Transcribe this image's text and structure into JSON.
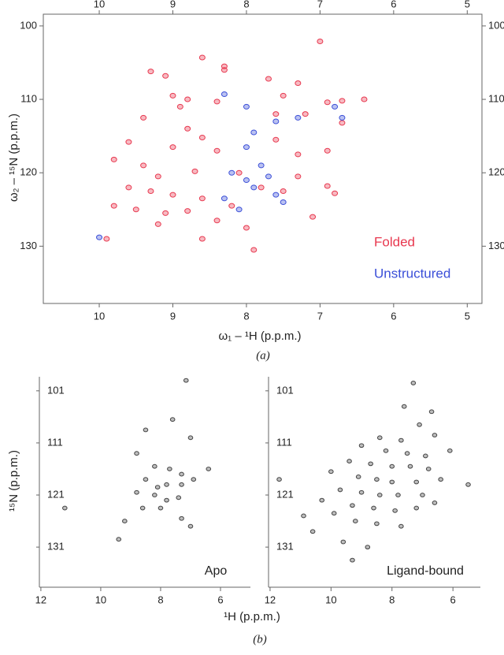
{
  "chart_data": [
    {
      "type": "scatter",
      "xlabel": "ω₁ – ¹H (p.p.m.)",
      "ylabel": "ω₂ – ¹⁵N (p.p.m.)",
      "caption": "(a)",
      "xlim": [
        10.76,
        4.8
      ],
      "ylim": [
        98.4,
        137.8
      ],
      "xticks": [
        10,
        9,
        8,
        7,
        6,
        5
      ],
      "yticks": [
        100,
        110,
        120,
        130
      ],
      "series": [
        {
          "name": "Folded",
          "color": "#e8384f",
          "x": [
            8.6,
            7.0,
            8.3,
            9.3,
            9.1,
            8.3,
            7.7,
            9.0,
            8.8,
            8.4,
            8.9,
            7.5,
            7.3,
            6.9,
            6.7,
            6.4,
            6.7,
            7.2,
            7.6,
            9.4,
            8.8,
            8.6,
            9.6,
            9.0,
            8.4,
            7.6,
            7.3,
            6.9,
            9.8,
            9.4,
            9.2,
            8.7,
            8.1,
            7.3,
            6.9,
            6.8,
            9.6,
            9.3,
            9.0,
            8.6,
            8.2,
            7.8,
            7.5,
            9.5,
            9.1,
            8.8,
            8.4,
            8.0,
            9.2,
            7.1,
            9.9,
            8.6,
            7.9,
            9.8
          ],
          "values": [
            104.3,
            102.1,
            105.5,
            106.2,
            106.8,
            106.0,
            107.2,
            109.5,
            110.0,
            110.3,
            111.0,
            109.5,
            107.8,
            110.4,
            110.2,
            110.0,
            113.2,
            112.0,
            112.0,
            112.5,
            114.0,
            115.2,
            115.8,
            116.5,
            117.0,
            115.5,
            117.5,
            117.0,
            118.2,
            119.0,
            120.5,
            119.8,
            120.0,
            120.5,
            121.8,
            122.8,
            122.0,
            122.5,
            123.0,
            123.5,
            124.5,
            122.0,
            122.5,
            125.0,
            125.5,
            125.2,
            126.5,
            127.5,
            127.0,
            126.0,
            129.0,
            129.0,
            130.5,
            124.5
          ]
        },
        {
          "name": "Unstructured",
          "color": "#3b4fd8",
          "x": [
            8.3,
            8.0,
            7.6,
            7.3,
            6.8,
            6.7,
            7.9,
            8.0,
            8.2,
            8.0,
            7.9,
            7.7,
            7.6,
            8.3,
            8.1,
            7.5,
            10.0,
            7.8
          ],
          "values": [
            109.3,
            111.0,
            113.0,
            112.5,
            111.0,
            112.5,
            114.5,
            116.5,
            120.0,
            121.0,
            122.0,
            120.5,
            123.0,
            123.5,
            125.0,
            124.0,
            128.8,
            119.0
          ]
        }
      ]
    },
    {
      "type": "scatter",
      "xlim": [
        12.05,
        5.0
      ],
      "ylim": [
        98.3,
        138.7
      ],
      "xticks": [
        12,
        10,
        8,
        6
      ],
      "yticks": [
        101,
        111,
        121,
        131
      ],
      "series": [
        {
          "name": "Apo",
          "color": "#444444",
          "x": [
            7.15,
            8.5,
            7.6,
            7.0,
            8.8,
            8.2,
            7.7,
            7.3,
            8.5,
            8.1,
            7.8,
            7.3,
            6.9,
            8.8,
            8.2,
            7.8,
            7.4,
            8.6,
            8.0,
            7.3,
            9.2,
            9.4,
            11.2,
            6.4,
            7.0
          ],
          "values": [
            99,
            108.5,
            106.5,
            110,
            113,
            115.5,
            116,
            117,
            118,
            119.5,
            119,
            119,
            118,
            120.5,
            121,
            122,
            121.5,
            123.5,
            123.5,
            125.5,
            126,
            129.5,
            123.5,
            116,
            127
          ]
        }
      ]
    },
    {
      "type": "scatter",
      "xlim": [
        12.05,
        5.1
      ],
      "ylim": [
        98.3,
        138.7
      ],
      "xticks": [
        12,
        10,
        8,
        6
      ],
      "yticks": [
        101,
        111,
        121,
        131
      ],
      "series": [
        {
          "name": "Ligand-bound",
          "color": "#444444",
          "x": [
            7.3,
            7.6,
            6.7,
            7.1,
            8.4,
            7.7,
            6.6,
            9.0,
            8.2,
            7.5,
            6.9,
            6.1,
            9.4,
            8.7,
            8.0,
            7.4,
            6.8,
            10.0,
            9.1,
            8.5,
            8.0,
            7.2,
            6.4,
            9.7,
            9.0,
            8.4,
            7.8,
            7.0,
            10.3,
            9.3,
            8.6,
            7.9,
            7.2,
            6.6,
            9.9,
            9.2,
            8.5,
            7.7,
            10.6,
            9.6,
            8.8,
            9.3,
            11.7,
            5.5,
            10.9
          ],
          "values": [
            99.5,
            104,
            105,
            107.5,
            110,
            110.5,
            109.5,
            111.5,
            112.5,
            113,
            113.5,
            112.5,
            114.5,
            115,
            115.5,
            115.5,
            116,
            116.5,
            117.5,
            118,
            118.5,
            118.5,
            118,
            120,
            120.5,
            121,
            121,
            121,
            122,
            123,
            123.5,
            124,
            123.5,
            122.5,
            124.5,
            126,
            126.5,
            127,
            128,
            130,
            131,
            133.5,
            118,
            119,
            125
          ]
        }
      ]
    }
  ],
  "panel_b": {
    "xlabel": "¹H (p.p.m.)",
    "ylabel": "¹⁵N (p.p.m.)",
    "caption": "(b)"
  }
}
